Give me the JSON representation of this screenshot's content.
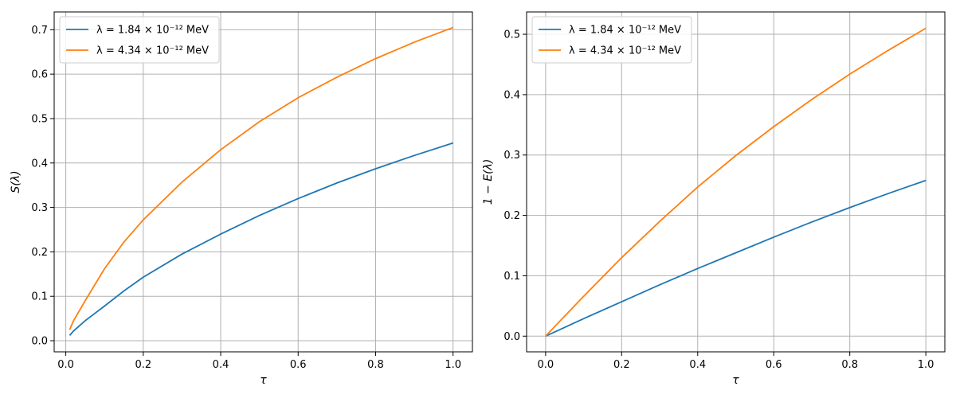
{
  "chart_data": [
    {
      "type": "line",
      "xlabel": "τ",
      "ylabel": "S(λ)",
      "xlim": [
        -0.03,
        1.05
      ],
      "ylim": [
        -0.025,
        0.74
      ],
      "xticks": [
        0.0,
        0.2,
        0.4,
        0.6,
        0.8,
        1.0
      ],
      "xtick_labels": [
        "0.0",
        "0.2",
        "0.4",
        "0.6",
        "0.8",
        "1.0"
      ],
      "yticks": [
        0.0,
        0.1,
        0.2,
        0.3,
        0.4,
        0.5,
        0.6,
        0.7
      ],
      "ytick_labels": [
        "0.0",
        "0.1",
        "0.2",
        "0.3",
        "0.4",
        "0.5",
        "0.6",
        "0.7"
      ],
      "grid": true,
      "legend_position": "top-left",
      "series": [
        {
          "name": "λ = 1.84 × 10⁻¹² MeV",
          "color": "#1f77b4",
          "x": [
            0.01,
            0.02,
            0.05,
            0.1,
            0.15,
            0.2,
            0.3,
            0.4,
            0.5,
            0.6,
            0.7,
            0.8,
            0.9,
            1.0
          ],
          "y": [
            0.012,
            0.022,
            0.045,
            0.078,
            0.112,
            0.143,
            0.195,
            0.24,
            0.282,
            0.32,
            0.355,
            0.387,
            0.417,
            0.445
          ]
        },
        {
          "name": "λ = 4.34 × 10⁻¹² MeV",
          "color": "#ff7f0e",
          "x": [
            0.01,
            0.02,
            0.05,
            0.1,
            0.15,
            0.2,
            0.3,
            0.4,
            0.5,
            0.6,
            0.7,
            0.8,
            0.9,
            1.0
          ],
          "y": [
            0.025,
            0.045,
            0.09,
            0.162,
            0.222,
            0.272,
            0.357,
            0.43,
            0.493,
            0.547,
            0.593,
            0.635,
            0.672,
            0.705
          ]
        }
      ]
    },
    {
      "type": "line",
      "xlabel": "τ",
      "ylabel": "1 − E(λ)",
      "xlim": [
        -0.05,
        1.05
      ],
      "ylim": [
        -0.026,
        0.537
      ],
      "xticks": [
        0.0,
        0.2,
        0.4,
        0.6,
        0.8,
        1.0
      ],
      "xtick_labels": [
        "0.0",
        "0.2",
        "0.4",
        "0.6",
        "0.8",
        "1.0"
      ],
      "yticks": [
        0.0,
        0.1,
        0.2,
        0.3,
        0.4,
        0.5
      ],
      "ytick_labels": [
        "0.0",
        "0.1",
        "0.2",
        "0.3",
        "0.4",
        "0.5"
      ],
      "grid": true,
      "legend_position": "top-left",
      "series": [
        {
          "name": "λ = 1.84 × 10⁻¹² MeV",
          "color": "#1f77b4",
          "x": [
            0.0,
            0.1,
            0.2,
            0.3,
            0.4,
            0.5,
            0.6,
            0.7,
            0.8,
            0.9,
            1.0
          ],
          "y": [
            0.0,
            0.029,
            0.057,
            0.085,
            0.112,
            0.138,
            0.164,
            0.189,
            0.213,
            0.236,
            0.258
          ]
        },
        {
          "name": "λ = 4.34 × 10⁻¹² MeV",
          "color": "#ff7f0e",
          "x": [
            0.0,
            0.1,
            0.2,
            0.3,
            0.4,
            0.5,
            0.6,
            0.7,
            0.8,
            0.9,
            1.0
          ],
          "y": [
            0.0,
            0.066,
            0.13,
            0.19,
            0.247,
            0.299,
            0.347,
            0.392,
            0.434,
            0.473,
            0.51
          ]
        }
      ]
    }
  ]
}
